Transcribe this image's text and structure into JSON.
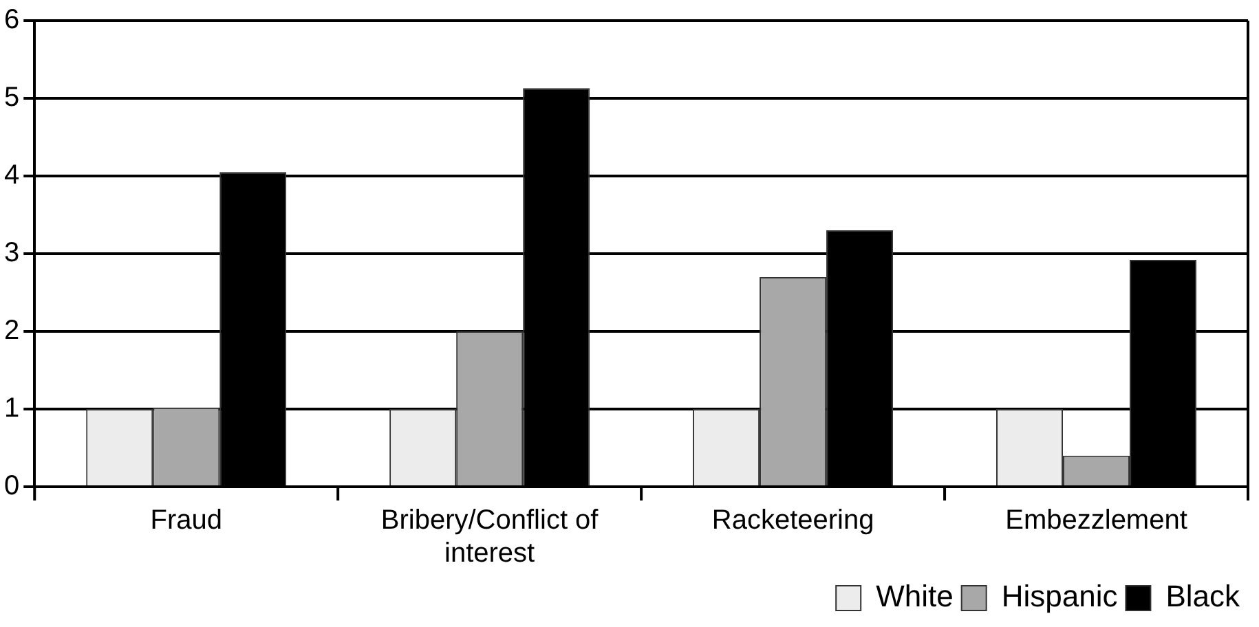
{
  "chart_data": {
    "type": "bar",
    "categories": [
      "Fraud",
      "Bribery/Conflict of interest",
      "Racketeering",
      "Embezzlement"
    ],
    "series": [
      {
        "name": "White",
        "color": "#ececec",
        "values": [
          1,
          1,
          1,
          1
        ]
      },
      {
        "name": "Hispanic",
        "color": "#a8a8a8",
        "values": [
          1.02,
          2.0,
          2.7,
          0.4
        ]
      },
      {
        "name": "Black",
        "color": "#000000",
        "values": [
          4.05,
          5.13,
          3.3,
          2.92
        ]
      }
    ],
    "ylim": [
      0,
      6
    ],
    "yticks": [
      0,
      1,
      2,
      3,
      4,
      5,
      6
    ],
    "grid": "y",
    "legend": "bottom right"
  }
}
